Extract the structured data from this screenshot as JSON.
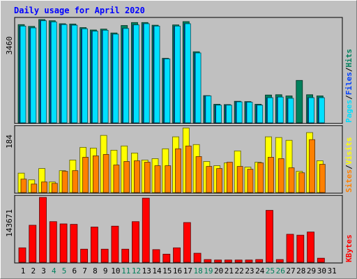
{
  "title": "Daily usage for April 2020",
  "colors": {
    "background": "#c0c0c0",
    "hits": "#00805c",
    "files": "#0040ff",
    "pages": "#00e0ff",
    "visits": "#ffff00",
    "sites": "#ff8000",
    "kbytes": "#ff0000",
    "weekday_label": "#000000",
    "weekend_label": "#00805c"
  },
  "chart_data": [
    {
      "type": "bar",
      "panel": "top",
      "ymax_label": "3460",
      "ylim": [
        0,
        3460
      ],
      "categories": [
        "1",
        "2",
        "3",
        "4",
        "5",
        "6",
        "7",
        "8",
        "9",
        "10",
        "11",
        "12",
        "13",
        "14",
        "15",
        "16",
        "17",
        "18",
        "19",
        "20",
        "21",
        "22",
        "23",
        "24",
        "25",
        "26",
        "27",
        "28",
        "29",
        "30",
        "31"
      ],
      "weekend_days": [
        "4",
        "5",
        "11",
        "12",
        "18",
        "19",
        "25",
        "26"
      ],
      "legend": [
        "Pages",
        "Files",
        "Hits"
      ],
      "series": [
        {
          "name": "Hits",
          "values": [
            3290,
            3230,
            3460,
            3420,
            3320,
            3310,
            3190,
            3110,
            3140,
            3010,
            3260,
            3360,
            3360,
            3270,
            2160,
            3280,
            3390,
            2380,
            910,
            620,
            610,
            720,
            710,
            620,
            930,
            940,
            900,
            1420,
            940,
            900,
            0
          ]
        },
        {
          "name": "Files",
          "values": [
            3240,
            3180,
            3420,
            3380,
            3290,
            3270,
            3150,
            3070,
            3100,
            2970,
            3160,
            3280,
            3320,
            3240,
            2140,
            3240,
            3320,
            2340,
            900,
            590,
            590,
            700,
            690,
            590,
            840,
            860,
            820,
            0,
            840,
            840,
            0
          ]
        },
        {
          "name": "Pages",
          "values": [
            3240,
            3180,
            3420,
            3380,
            3290,
            3270,
            3150,
            3070,
            3100,
            2970,
            3160,
            3280,
            3320,
            3240,
            2140,
            3240,
            3320,
            2340,
            900,
            590,
            590,
            700,
            690,
            590,
            840,
            860,
            820,
            0,
            840,
            840,
            0
          ]
        }
      ]
    },
    {
      "type": "bar",
      "panel": "middle",
      "ymax_label": "184",
      "ylim": [
        0,
        184
      ],
      "categories": [
        "1",
        "2",
        "3",
        "4",
        "5",
        "6",
        "7",
        "8",
        "9",
        "10",
        "11",
        "12",
        "13",
        "14",
        "15",
        "16",
        "17",
        "18",
        "19",
        "20",
        "21",
        "22",
        "23",
        "24",
        "25",
        "26",
        "27",
        "28",
        "29",
        "30",
        "31"
      ],
      "legend": [
        "Sites",
        "Visits"
      ],
      "series": [
        {
          "name": "Visits",
          "values": [
            55,
            36,
            68,
            30,
            62,
            92,
            128,
            126,
            162,
            120,
            132,
            112,
            92,
            96,
            124,
            158,
            183,
            136,
            88,
            76,
            84,
            118,
            72,
            86,
            158,
            156,
            148,
            60,
            170,
            90,
            0
          ]
        },
        {
          "name": "Sites",
          "values": [
            38,
            24,
            30,
            26,
            60,
            62,
            100,
            104,
            108,
            78,
            88,
            90,
            86,
            76,
            76,
            124,
            132,
            102,
            74,
            68,
            86,
            74,
            66,
            84,
            100,
            96,
            70,
            56,
            150,
            80,
            0
          ]
        }
      ]
    },
    {
      "type": "bar",
      "panel": "bottom",
      "ymax_label": "143671",
      "ylim": [
        0,
        143671
      ],
      "categories": [
        "1",
        "2",
        "3",
        "4",
        "5",
        "6",
        "7",
        "8",
        "9",
        "10",
        "11",
        "12",
        "13",
        "14",
        "15",
        "16",
        "17",
        "18",
        "19",
        "20",
        "21",
        "22",
        "23",
        "24",
        "25",
        "26",
        "27",
        "28",
        "29",
        "30",
        "31"
      ],
      "legend": [
        "KBytes"
      ],
      "series": [
        {
          "name": "KBytes",
          "values": [
            32000,
            82000,
            143671,
            90000,
            85000,
            84000,
            29000,
            78000,
            29000,
            80000,
            29000,
            90000,
            142000,
            28000,
            18000,
            32000,
            88000,
            20000,
            6000,
            5000,
            5000,
            5000,
            5000,
            6000,
            115000,
            6000,
            62000,
            60000,
            67000,
            9000,
            0
          ]
        }
      ]
    }
  ]
}
